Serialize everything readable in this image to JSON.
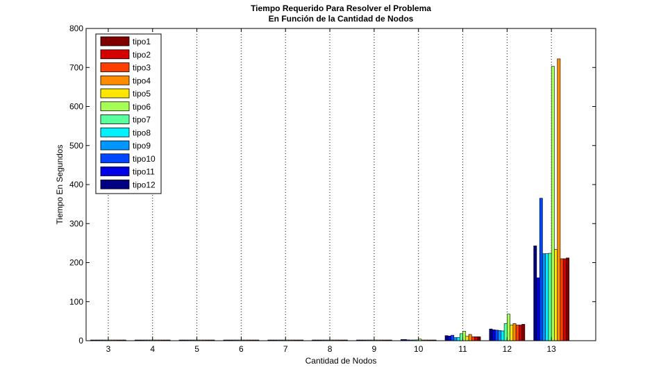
{
  "chart_data": {
    "type": "bar",
    "title": [
      "Tiempo Requerido Para Resolver el Problema",
      "En Función de la Cantidad de Nodos"
    ],
    "xlabel": "Cantidad de Nodos",
    "ylabel": "Tiempo En Segundos",
    "categories": [
      "3",
      "4",
      "5",
      "6",
      "7",
      "8",
      "9",
      "10",
      "11",
      "12",
      "13"
    ],
    "ylim": [
      0,
      800
    ],
    "yticks": [
      "0",
      "100",
      "200",
      "300",
      "400",
      "500",
      "600",
      "700",
      "800"
    ],
    "grid": "x-dotted",
    "legend_position": "top-left",
    "series": [
      {
        "name": "tipo1",
        "color": "#800000",
        "values": [
          0.1,
          0.1,
          0.1,
          0.1,
          0.5,
          0.5,
          0.5,
          1,
          10,
          42,
          212
        ]
      },
      {
        "name": "tipo2",
        "color": "#D40000",
        "values": [
          0.1,
          0.1,
          0.1,
          0.1,
          0.5,
          0.5,
          0.5,
          1,
          10,
          40,
          210
        ]
      },
      {
        "name": "tipo3",
        "color": "#FF3F00",
        "values": [
          0.1,
          0.1,
          0.1,
          0.1,
          0.5,
          0.5,
          0.5,
          1,
          10,
          40,
          210
        ]
      },
      {
        "name": "tipo4",
        "color": "#FF8C00",
        "values": [
          0.1,
          0.1,
          0.1,
          0.1,
          0.5,
          0.5,
          0.5,
          1,
          16,
          44,
          722
        ]
      },
      {
        "name": "tipo5",
        "color": "#FFE600",
        "values": [
          0.1,
          0.1,
          0.1,
          0.1,
          0.5,
          0.5,
          0.5,
          1,
          11,
          40,
          234
        ]
      },
      {
        "name": "tipo6",
        "color": "#A6FF55",
        "values": [
          0.1,
          0.1,
          0.1,
          0.1,
          0.5,
          0.5,
          0.5,
          4,
          24,
          68,
          703
        ]
      },
      {
        "name": "tipo7",
        "color": "#5BFF9B",
        "values": [
          0.1,
          0.1,
          0.1,
          0.1,
          0.5,
          0.5,
          0.5,
          2,
          18,
          44,
          224
        ]
      },
      {
        "name": "tipo8",
        "color": "#00F2FF",
        "values": [
          0.1,
          0.1,
          0.1,
          0.1,
          0.5,
          0.5,
          0.5,
          1,
          8,
          25,
          223
        ]
      },
      {
        "name": "tipo9",
        "color": "#0096FF",
        "values": [
          0.1,
          0.1,
          0.1,
          0.1,
          0.5,
          0.5,
          0.5,
          1,
          8,
          26,
          223
        ]
      },
      {
        "name": "tipo10",
        "color": "#0046FF",
        "values": [
          0.1,
          0.1,
          0.1,
          0.1,
          0.5,
          0.5,
          0.5,
          2,
          14,
          27,
          365
        ]
      },
      {
        "name": "tipo11",
        "color": "#0000E6",
        "values": [
          0.1,
          0.1,
          0.1,
          0.1,
          0.5,
          0.5,
          0.5,
          3,
          12,
          28,
          161
        ]
      },
      {
        "name": "tipo12",
        "color": "#000080",
        "values": [
          0.1,
          0.1,
          0.1,
          0.1,
          0.5,
          0.5,
          0.5,
          3,
          13,
          30,
          243
        ]
      }
    ]
  }
}
